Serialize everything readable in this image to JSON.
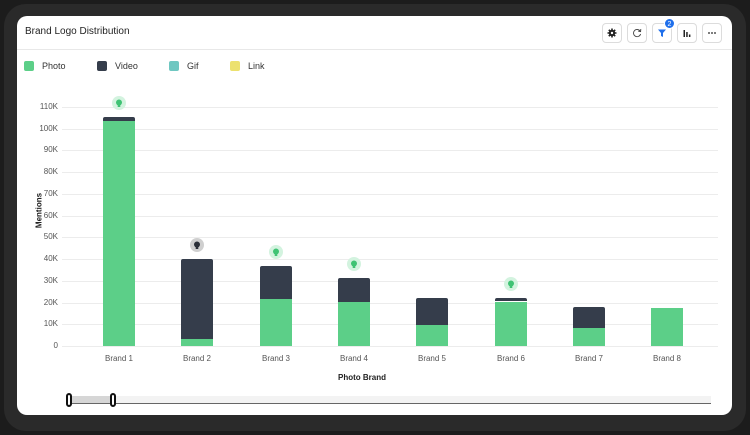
{
  "header": {
    "title": "Brand Logo Distribution",
    "toolbar": [
      {
        "name": "settings-button",
        "icon": "gear-icon"
      },
      {
        "name": "refresh-button",
        "icon": "refresh-icon"
      },
      {
        "name": "filter-button",
        "icon": "filter-icon",
        "badge": "2"
      },
      {
        "name": "chart-type-button",
        "icon": "bar-chart-icon"
      },
      {
        "name": "more-button",
        "icon": "more-horizontal-icon"
      }
    ]
  },
  "colors": {
    "photo": "#5ccf88",
    "video": "#353d4b",
    "gif": "#6fc7c1",
    "link": "#ece16e",
    "accent": "#1f6feb"
  },
  "chart_data": {
    "type": "bar",
    "stacked": true,
    "title": "Brand Logo Distribution",
    "xlabel": "Photo Brand",
    "ylabel": "Mentions",
    "ylim": [
      0,
      110000
    ],
    "yticks": [
      "0",
      "10K",
      "20K",
      "30K",
      "40K",
      "50K",
      "60K",
      "70K",
      "80K",
      "90K",
      "100K",
      "110K"
    ],
    "legend": [
      "Photo",
      "Video",
      "Gif",
      "Link"
    ],
    "legend_position": "top-left",
    "grid": true,
    "categories": [
      "Brand 1",
      "Brand 2",
      "Brand 3",
      "Brand 4",
      "Brand 5",
      "Brand 6",
      "Brand 7",
      "Brand 8"
    ],
    "series": [
      {
        "name": "Photo",
        "values": [
          103500,
          3000,
          21700,
          20400,
          9700,
          20400,
          8300,
          17600
        ]
      },
      {
        "name": "Video",
        "values": [
          2000,
          37000,
          15000,
          11000,
          12500,
          1600,
          9700,
          0
        ]
      },
      {
        "name": "Gif",
        "values": [
          0,
          0,
          0,
          0,
          0,
          0,
          0,
          0
        ]
      },
      {
        "name": "Link",
        "values": [
          0,
          0,
          0,
          0,
          0,
          0,
          0,
          0
        ]
      }
    ],
    "insights": [
      {
        "category": "Brand 1",
        "color": "green"
      },
      {
        "category": "Brand 2",
        "color": "grey"
      },
      {
        "category": "Brand 3",
        "color": "green"
      },
      {
        "category": "Brand 4",
        "color": "green"
      },
      {
        "category": "Brand 6",
        "color": "green"
      }
    ]
  },
  "range_slider": {
    "start_label": "0",
    "end_label": "0"
  }
}
